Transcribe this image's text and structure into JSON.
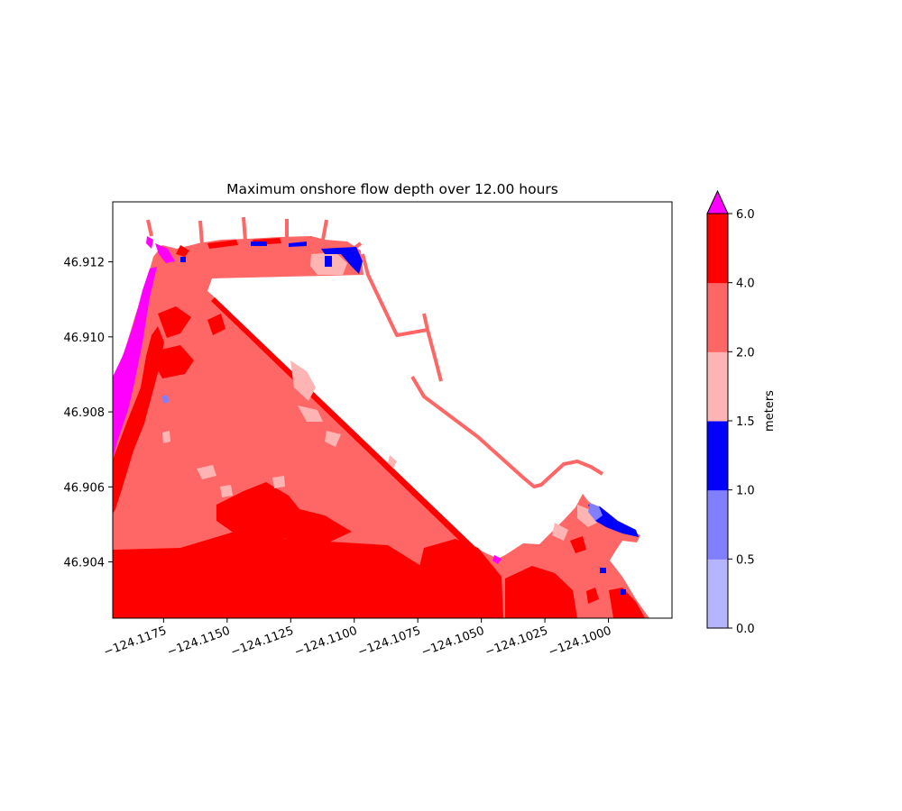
{
  "chart_data": {
    "type": "heatmap",
    "title": "Maximum onshore flow depth over 12.00 hours",
    "xlabel": "",
    "ylabel": "",
    "xlim": [
      -124.1195,
      -124.0975
    ],
    "ylim": [
      46.9025,
      46.9136
    ],
    "x_ticks": [
      -124.1175,
      -124.115,
      -124.1125,
      -124.11,
      -124.1075,
      -124.105,
      -124.1025,
      -124.1
    ],
    "x_tick_labels": [
      "−124.1175",
      "−124.1150",
      "−124.1125",
      "−124.1100",
      "−124.1075",
      "−124.1050",
      "−124.1025",
      "−124.1000"
    ],
    "y_ticks": [
      46.904,
      46.906,
      46.908,
      46.91,
      46.912
    ],
    "y_tick_labels": [
      "46.904",
      "46.906",
      "46.908",
      "46.910",
      "46.912"
    ],
    "colorbar": {
      "label": "meters",
      "boundaries": [
        0.0,
        0.5,
        1.0,
        1.5,
        2.0,
        4.0,
        6.0
      ],
      "tick_labels": [
        "0.0",
        "0.5",
        "1.0",
        "1.5",
        "2.0",
        "4.0",
        "6.0"
      ],
      "colors": [
        "#b4b4ff",
        "#8080ff",
        "#0000ff",
        "#ffb4b4",
        "#ff6666",
        "#ff0000"
      ],
      "extend_max_color": "#ff00ff",
      "extend": "max"
    },
    "grid": false
  }
}
